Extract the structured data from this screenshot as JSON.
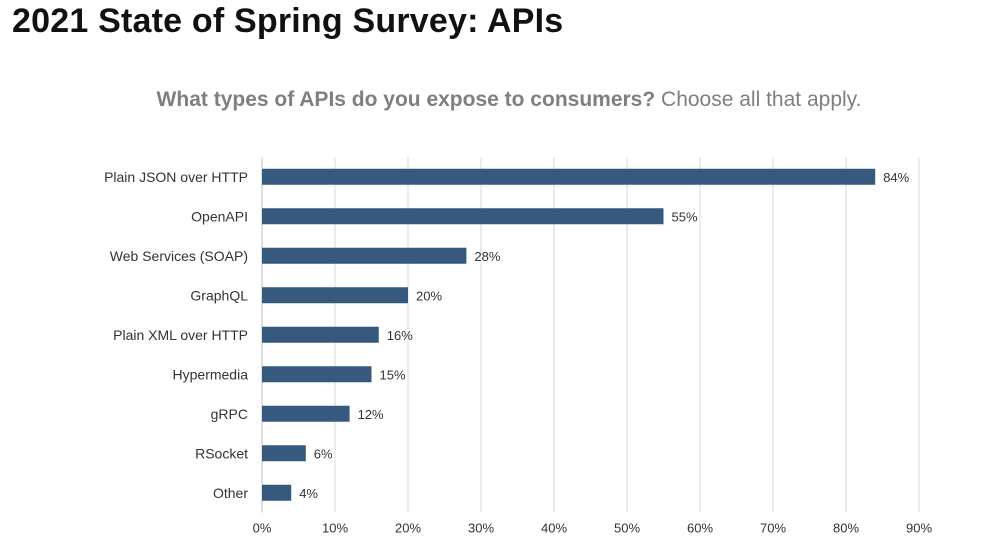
{
  "page": {
    "title": "2021 State of Spring Survey: APIs"
  },
  "chart_data": {
    "type": "bar",
    "orientation": "horizontal",
    "title_bold": "What types of APIs do you expose to consumers?",
    "title_rest": "Choose all that apply.",
    "categories": [
      "Plain JSON over HTTP",
      "OpenAPI",
      "Web Services (SOAP)",
      "GraphQL",
      "Plain XML over HTTP",
      "Hypermedia",
      "gRPC",
      "RSocket",
      "Other"
    ],
    "values": [
      84,
      55,
      28,
      20,
      16,
      15,
      12,
      6,
      4
    ],
    "value_labels": [
      "84%",
      "55%",
      "28%",
      "20%",
      "16%",
      "15%",
      "12%",
      "6%",
      "4%"
    ],
    "xlim": [
      0,
      90
    ],
    "xticks": [
      "0%",
      "10%",
      "20%",
      "30%",
      "40%",
      "50%",
      "60%",
      "70%",
      "80%",
      "90%"
    ],
    "grid": "vertical",
    "legend": "none",
    "bar_color": "#365a7e"
  }
}
